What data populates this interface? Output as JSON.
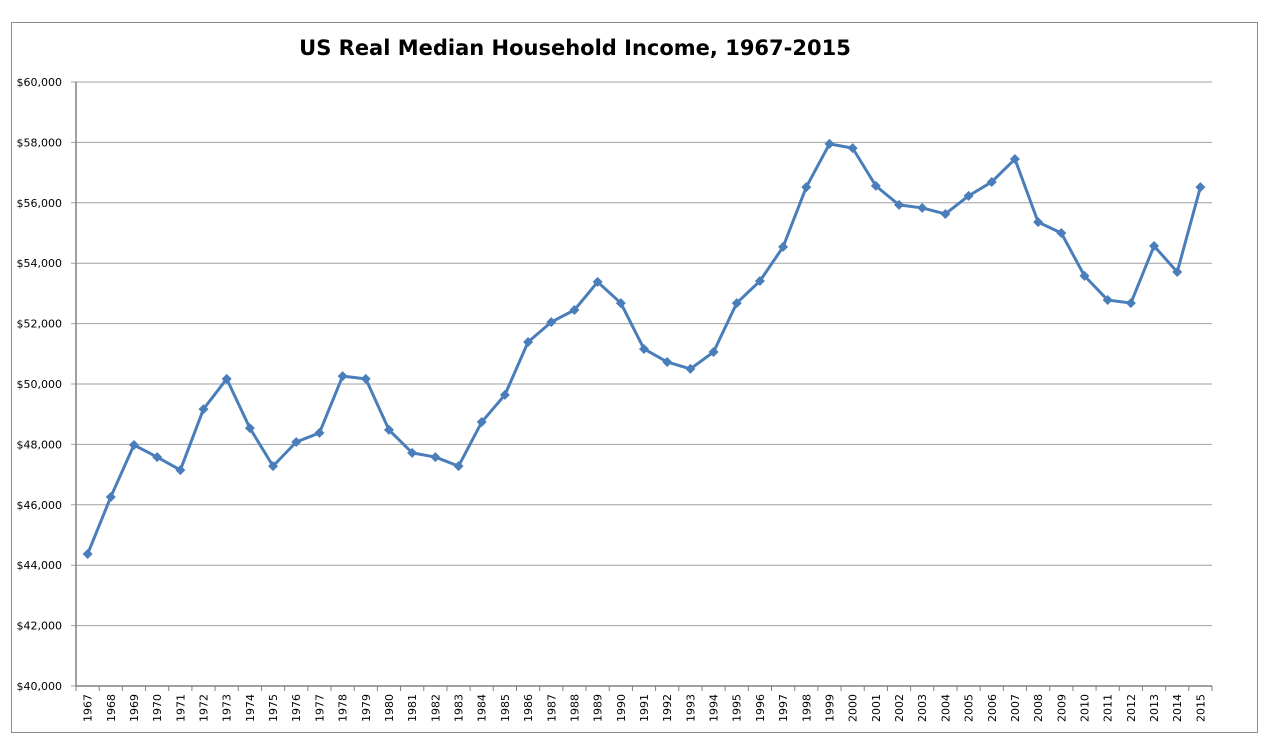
{
  "chart_data": {
    "type": "line",
    "title": "US Real Median Household Income, 1967-2015",
    "xlabel": "",
    "ylabel": "",
    "ylim": [
      40000,
      60000
    ],
    "ytick_step": 2000,
    "ytick_labels": [
      "$40,000",
      "$42,000",
      "$44,000",
      "$46,000",
      "$48,000",
      "$50,000",
      "$52,000",
      "$54,000",
      "$56,000",
      "$58,000",
      "$60,000"
    ],
    "grid": true,
    "legend": "none",
    "line_color": "#4a7ebb",
    "categories": [
      "1967",
      "1968",
      "1969",
      "1970",
      "1971",
      "1972",
      "1973",
      "1974",
      "1975",
      "1976",
      "1977",
      "1978",
      "1979",
      "1980",
      "1981",
      "1982",
      "1983",
      "1984",
      "1985",
      "1986",
      "1987",
      "1988",
      "1989",
      "1990",
      "1991",
      "1992",
      "1993",
      "1994",
      "1995",
      "1996",
      "1997",
      "1998",
      "1999",
      "2000",
      "2001",
      "2002",
      "2003",
      "2004",
      "2005",
      "2006",
      "2007",
      "2008",
      "2009",
      "2010",
      "2011",
      "2012",
      "2013",
      "2014",
      "2015"
    ],
    "series": [
      {
        "name": "Real Median Household Income",
        "values": [
          44370,
          46260,
          47980,
          47580,
          47150,
          49170,
          50170,
          48540,
          47280,
          48080,
          48380,
          50260,
          50170,
          48480,
          47720,
          47580,
          47280,
          48740,
          49640,
          51390,
          52050,
          52450,
          53380,
          52680,
          51160,
          50730,
          50500,
          51060,
          52680,
          53410,
          54540,
          56520,
          57950,
          57810,
          56560,
          55930,
          55830,
          55630,
          56230,
          56690,
          57450,
          55360,
          55000,
          53580,
          52780,
          52680,
          54570,
          53710,
          56520
        ]
      }
    ]
  }
}
